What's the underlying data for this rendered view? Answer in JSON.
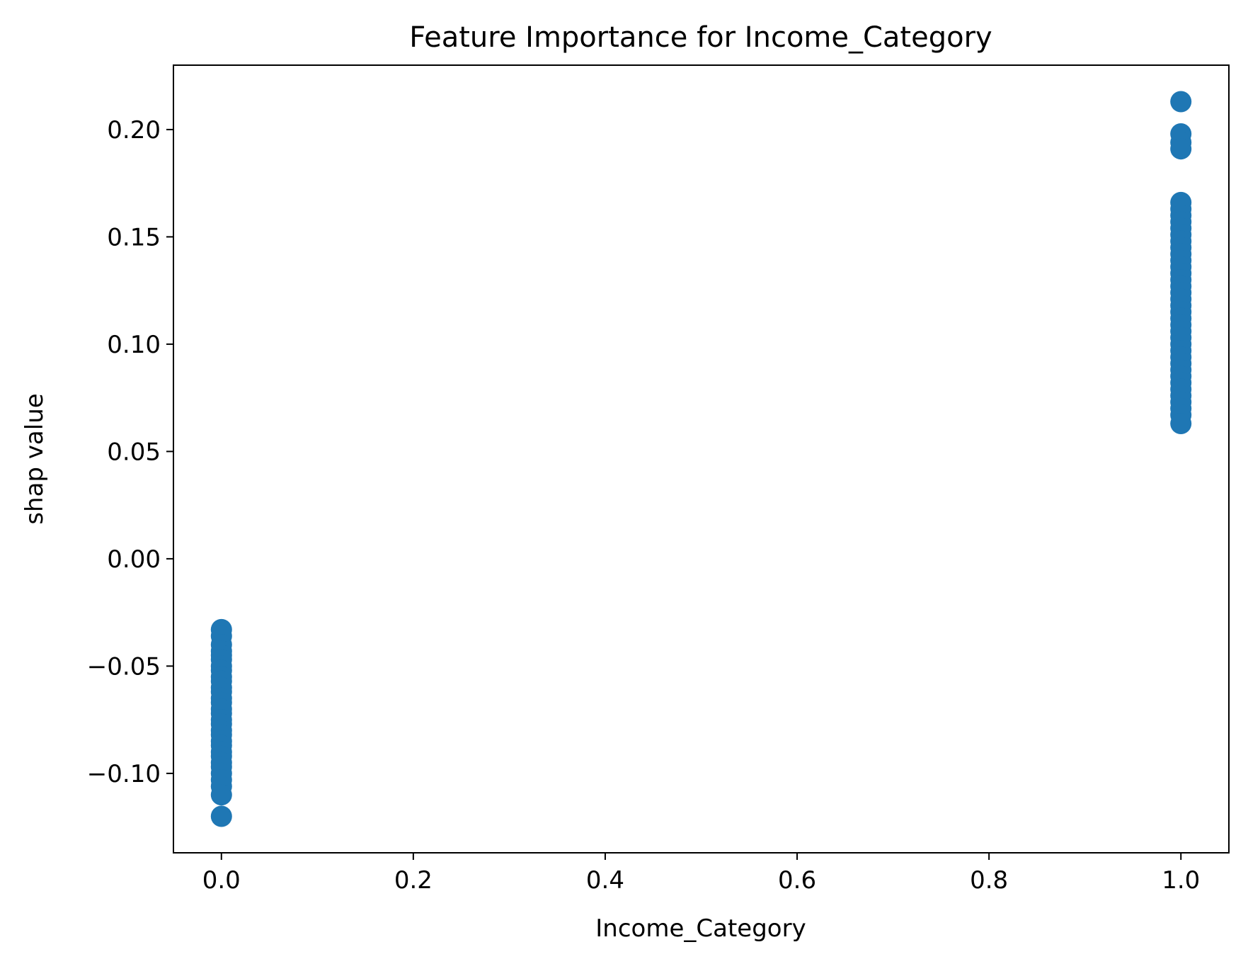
{
  "chart_data": {
    "type": "scatter",
    "title": "Feature Importance for Income_Category",
    "xlabel": "Income_Category",
    "ylabel": "shap value",
    "xlim": [
      -0.05,
      1.05
    ],
    "ylim": [
      -0.137,
      0.23
    ],
    "grid": false,
    "legend": "none",
    "color": "#1f77b4",
    "x_ticks": [
      {
        "value": 0.0,
        "label": "0.0"
      },
      {
        "value": 0.2,
        "label": "0.2"
      },
      {
        "value": 0.4,
        "label": "0.4"
      },
      {
        "value": 0.6,
        "label": "0.6"
      },
      {
        "value": 0.8,
        "label": "0.8"
      },
      {
        "value": 1.0,
        "label": "1.0"
      }
    ],
    "y_ticks": [
      {
        "value": -0.1,
        "label": "−0.10"
      },
      {
        "value": -0.05,
        "label": "−0.05"
      },
      {
        "value": 0.0,
        "label": "0.00"
      },
      {
        "value": 0.05,
        "label": "0.05"
      },
      {
        "value": 0.1,
        "label": "0.10"
      },
      {
        "value": 0.15,
        "label": "0.15"
      },
      {
        "value": 0.2,
        "label": "0.20"
      }
    ],
    "series": [
      {
        "points": [
          [
            0,
            -0.033
          ],
          [
            0,
            -0.036
          ],
          [
            0,
            -0.04
          ],
          [
            0,
            -0.043
          ],
          [
            0,
            -0.045
          ],
          [
            0,
            -0.047
          ],
          [
            0,
            -0.05
          ],
          [
            0,
            -0.052
          ],
          [
            0,
            -0.055
          ],
          [
            0,
            -0.057
          ],
          [
            0,
            -0.06
          ],
          [
            0,
            -0.062
          ],
          [
            0,
            -0.065
          ],
          [
            0,
            -0.067
          ],
          [
            0,
            -0.07
          ],
          [
            0,
            -0.072
          ],
          [
            0,
            -0.075
          ],
          [
            0,
            -0.077
          ],
          [
            0,
            -0.08
          ],
          [
            0,
            -0.082
          ],
          [
            0,
            -0.085
          ],
          [
            0,
            -0.087
          ],
          [
            0,
            -0.09
          ],
          [
            0,
            -0.092
          ],
          [
            0,
            -0.095
          ],
          [
            0,
            -0.097
          ],
          [
            0,
            -0.1
          ],
          [
            0,
            -0.103
          ],
          [
            0,
            -0.106
          ],
          [
            0,
            -0.11
          ],
          [
            0,
            -0.12
          ],
          [
            1,
            0.213
          ],
          [
            1,
            0.198
          ],
          [
            1,
            0.194
          ],
          [
            1,
            0.191
          ],
          [
            1,
            0.166
          ],
          [
            1,
            0.163
          ],
          [
            1,
            0.16
          ],
          [
            1,
            0.157
          ],
          [
            1,
            0.154
          ],
          [
            1,
            0.151
          ],
          [
            1,
            0.148
          ],
          [
            1,
            0.145
          ],
          [
            1,
            0.142
          ],
          [
            1,
            0.139
          ],
          [
            1,
            0.136
          ],
          [
            1,
            0.133
          ],
          [
            1,
            0.13
          ],
          [
            1,
            0.127
          ],
          [
            1,
            0.124
          ],
          [
            1,
            0.121
          ],
          [
            1,
            0.118
          ],
          [
            1,
            0.115
          ],
          [
            1,
            0.112
          ],
          [
            1,
            0.109
          ],
          [
            1,
            0.106
          ],
          [
            1,
            0.103
          ],
          [
            1,
            0.1
          ],
          [
            1,
            0.097
          ],
          [
            1,
            0.094
          ],
          [
            1,
            0.091
          ],
          [
            1,
            0.088
          ],
          [
            1,
            0.085
          ],
          [
            1,
            0.082
          ],
          [
            1,
            0.079
          ],
          [
            1,
            0.076
          ],
          [
            1,
            0.073
          ],
          [
            1,
            0.07
          ],
          [
            1,
            0.067
          ],
          [
            1,
            0.063
          ]
        ]
      }
    ]
  }
}
